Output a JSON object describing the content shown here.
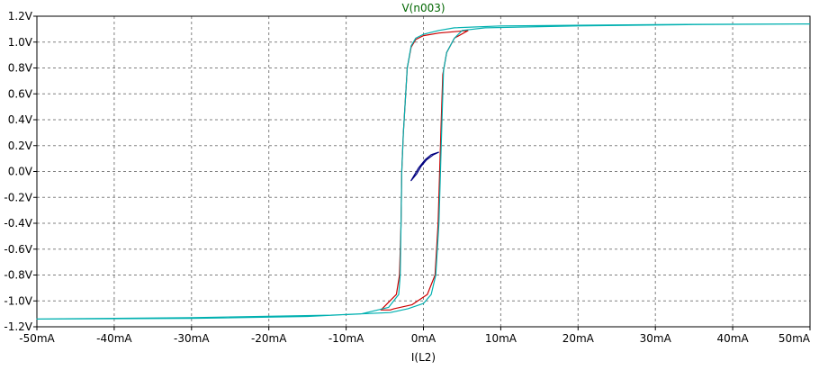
{
  "chart_data": {
    "type": "line",
    "title": "V(n003)",
    "xlabel": "I(L2)",
    "ylabel": "",
    "xlim": [
      -50,
      50
    ],
    "ylim": [
      -1.2,
      1.2
    ],
    "x_unit": "mA",
    "y_unit": "V",
    "grid": true,
    "x_ticks": [
      "-50mA",
      "-40mA",
      "-30mA",
      "-20mA",
      "-10mA",
      "0mA",
      "10mA",
      "20mA",
      "30mA",
      "40mA",
      "50mA"
    ],
    "y_ticks": [
      "1.2V",
      "1.0V",
      "0.8V",
      "0.6V",
      "0.4V",
      "0.2V",
      "0.0V",
      "-0.2V",
      "-0.4V",
      "-0.6V",
      "-0.8V",
      "-1.0V",
      "-1.2V"
    ],
    "series": [
      {
        "color": "#cc0000",
        "x": [
          5.8,
          4.0,
          2.0,
          0.0,
          -1.0,
          -1.6,
          -2.1,
          -2.6,
          -2.8,
          -2.9,
          -3.1,
          -3.5,
          -5.5,
          -4.3,
          -3.8,
          -1.5,
          0.5,
          1.5,
          1.9,
          2.1,
          2.3,
          2.5,
          3.0,
          4.0,
          5.8
        ],
        "y": [
          1.09,
          1.08,
          1.07,
          1.05,
          1.02,
          0.96,
          0.8,
          0.3,
          0.0,
          -0.4,
          -0.8,
          -0.95,
          -1.07,
          -1.07,
          -1.06,
          -1.03,
          -0.95,
          -0.8,
          -0.4,
          0.0,
          0.4,
          0.75,
          0.92,
          1.03,
          1.09
        ]
      },
      {
        "color": "#00b0b0",
        "x": [
          50.0,
          30.0,
          10.0,
          4.0,
          2.0,
          0.0,
          -1.0,
          -1.6,
          -2.1,
          -2.6,
          -2.8,
          -2.9,
          -3.0,
          -3.2,
          -4.5,
          -8.0,
          -15.0,
          -30.0,
          -50.0,
          -30.0,
          -12.0,
          -4.3,
          -2.0,
          0.0,
          1.0,
          1.6,
          2.0,
          2.2,
          2.4,
          2.6,
          3.0,
          4.0,
          5.0,
          8.0,
          20.0,
          35.0,
          50.0
        ],
        "y": [
          1.14,
          1.135,
          1.125,
          1.11,
          1.09,
          1.06,
          1.03,
          0.97,
          0.8,
          0.3,
          0.0,
          -0.4,
          -0.8,
          -0.95,
          -1.05,
          -1.1,
          -1.12,
          -1.135,
          -1.14,
          -1.13,
          -1.11,
          -1.09,
          -1.06,
          -1.02,
          -0.95,
          -0.8,
          -0.4,
          0.0,
          0.4,
          0.78,
          0.92,
          1.03,
          1.09,
          1.11,
          1.125,
          1.135,
          1.14
        ]
      },
      {
        "color": "#000080",
        "x": [
          2.0,
          1.3,
          0.4,
          -0.3,
          -0.9,
          -1.6,
          -1.3,
          -0.6,
          0.2,
          1.0,
          2.0
        ],
        "y": [
          0.15,
          0.13,
          0.09,
          0.04,
          -0.02,
          -0.07,
          -0.04,
          0.03,
          0.09,
          0.13,
          0.15
        ]
      }
    ]
  }
}
